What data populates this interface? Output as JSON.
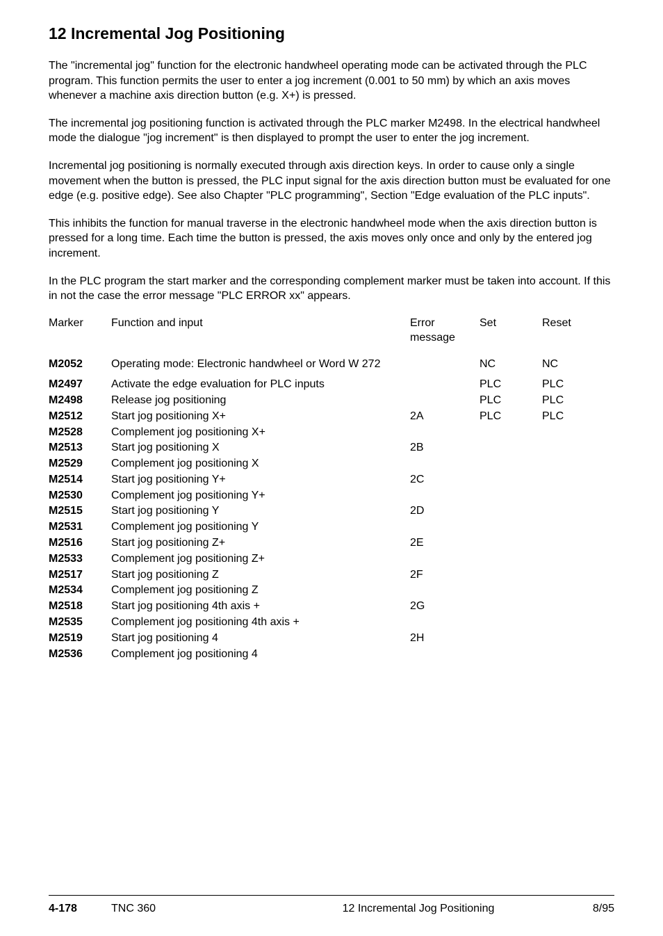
{
  "heading": "12  Incremental Jog Positioning",
  "paragraphs": [
    "The \"incremental jog\" function for the electronic handwheel operating mode can be activated through the PLC program. This function permits the user to enter a jog increment (0.001 to 50 mm) by which an axis moves whenever a machine axis direction button (e.g. X+) is pressed.",
    "The incremental jog positioning function is activated through the PLC marker M2498. In the electrical handwheel mode the dialogue \"jog increment\" is then displayed to prompt the user to enter the jog increment.",
    "Incremental jog positioning is normally executed through axis direction keys. In order to cause only a single movement when the button is pressed, the PLC input signal for the axis direction button must be evaluated for one edge (e.g. positive edge). See also Chapter \"PLC programming\", Section \"Edge evaluation of the PLC inputs\".",
    "This inhibits the function for manual traverse in the electronic handwheel mode when the axis direction button is pressed for a long time. Each time the button is pressed, the axis moves only once and only by the entered jog increment.",
    "In the PLC program the start marker and the corresponding complement marker must be taken into account. If this in not the case the error message \"PLC ERROR xx\" appears."
  ],
  "table": {
    "header": {
      "marker": "Marker",
      "func": "Function and input",
      "error": "Error message",
      "set": "Set",
      "reset": "Reset"
    },
    "rows": [
      {
        "marker": "M2052",
        "func": "Operating mode: Electronic handwheel or Word W 272",
        "error": "",
        "set": "NC",
        "reset": "NC",
        "gap_after": true
      },
      {
        "marker": "M2497",
        "func": "Activate the edge evaluation for PLC inputs",
        "error": "",
        "set": "PLC",
        "reset": "PLC"
      },
      {
        "marker": "M2498",
        "func": "Release jog positioning",
        "error": "",
        "set": "PLC",
        "reset": "PLC"
      },
      {
        "marker": "M2512",
        "func": "Start jog positioning X+",
        "error": "2A",
        "set": "PLC",
        "reset": "PLC"
      },
      {
        "marker": "M2528",
        "func": "Complement jog positioning X+",
        "error": "",
        "set": "",
        "reset": ""
      },
      {
        "marker": "M2513",
        "func": "Start jog positioning X",
        "error": "2B",
        "set": "",
        "reset": ""
      },
      {
        "marker": "M2529",
        "func": "Complement jog positioning X",
        "error": "",
        "set": "",
        "reset": ""
      },
      {
        "marker": "M2514",
        "func": "Start jog positioning Y+",
        "error": "2C",
        "set": "",
        "reset": ""
      },
      {
        "marker": "M2530",
        "func": "Complement jog positioning Y+",
        "error": "",
        "set": "",
        "reset": ""
      },
      {
        "marker": "M2515",
        "func": "Start jog positioning Y",
        "error": "2D",
        "set": "",
        "reset": ""
      },
      {
        "marker": "M2531",
        "func": "Complement jog positioning Y",
        "error": "",
        "set": "",
        "reset": ""
      },
      {
        "marker": "M2516",
        "func": "Start jog positioning Z+",
        "error": "2E",
        "set": "",
        "reset": ""
      },
      {
        "marker": "M2533",
        "func": "Complement jog positioning Z+",
        "error": "",
        "set": "",
        "reset": ""
      },
      {
        "marker": "M2517",
        "func": "Start jog positioning Z",
        "error": "2F",
        "set": "",
        "reset": ""
      },
      {
        "marker": "M2534",
        "func": "Complement jog positioning Z",
        "error": "",
        "set": "",
        "reset": ""
      },
      {
        "marker": "M2518",
        "func": "Start jog positioning 4th axis +",
        "error": "2G",
        "set": "",
        "reset": ""
      },
      {
        "marker": "M2535",
        "func": "Complement jog positioning 4th axis +",
        "error": "",
        "set": "",
        "reset": ""
      },
      {
        "marker": "M2519",
        "func": "Start jog positioning 4",
        "error": "2H",
        "set": "",
        "reset": ""
      },
      {
        "marker": "M2536",
        "func": "Complement jog positioning 4",
        "error": "",
        "set": "",
        "reset": ""
      }
    ]
  },
  "footer": {
    "page": "4-178",
    "model": "TNC 360",
    "section": "12  Incremental Jog Positioning",
    "date": "8/95"
  }
}
